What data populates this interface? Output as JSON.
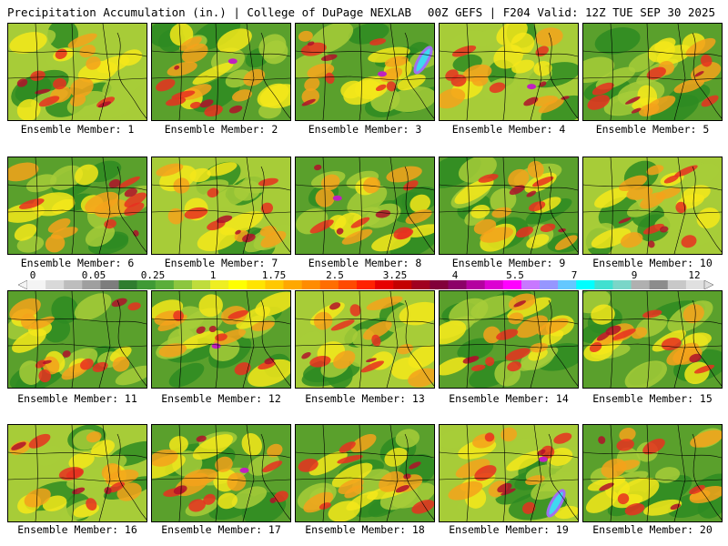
{
  "header": {
    "left_title": "Precipitation Accumulation (in.) | College of DuPage NEXLAB",
    "right_title": "00Z GEFS | F204 Valid: 12Z TUE SEP 30 2025"
  },
  "members": [
    {
      "label": "Ensemble Member: 1"
    },
    {
      "label": "Ensemble Member: 2"
    },
    {
      "label": "Ensemble Member: 3"
    },
    {
      "label": "Ensemble Member: 4"
    },
    {
      "label": "Ensemble Member: 5"
    },
    {
      "label": "Ensemble Member: 6"
    },
    {
      "label": "Ensemble Member: 7"
    },
    {
      "label": "Ensemble Member: 8"
    },
    {
      "label": "Ensemble Member: 9"
    },
    {
      "label": "Ensemble Member: 10"
    },
    {
      "label": "Ensemble Member: 11"
    },
    {
      "label": "Ensemble Member: 12"
    },
    {
      "label": "Ensemble Member: 13"
    },
    {
      "label": "Ensemble Member: 14"
    },
    {
      "label": "Ensemble Member: 15"
    },
    {
      "label": "Ensemble Member: 16"
    },
    {
      "label": "Ensemble Member: 17"
    },
    {
      "label": "Ensemble Member: 18"
    },
    {
      "label": "Ensemble Member: 19"
    },
    {
      "label": "Ensemble Member: 20"
    }
  ],
  "scale": {
    "tick_labels": [
      "0",
      "0.05",
      "0.25",
      "1",
      "1.75",
      "2.5",
      "3.25",
      "4",
      "5.5",
      "7",
      "9",
      "12"
    ],
    "colors": [
      "#f4f4f4",
      "#d9d9d9",
      "#bdbdbd",
      "#9f9f9f",
      "#7d7d7d",
      "#2f7d2f",
      "#3f9a35",
      "#5aae3a",
      "#8cc63f",
      "#bfdc3c",
      "#eeee22",
      "#ffff00",
      "#ffe400",
      "#ffc800",
      "#ffa800",
      "#ff8c00",
      "#ff6e00",
      "#ff4a00",
      "#ff2200",
      "#e60000",
      "#c40000",
      "#a00020",
      "#82003a",
      "#8c0068",
      "#b400a0",
      "#dc00d2",
      "#ff00ff",
      "#c878ff",
      "#9696ff",
      "#64c8ff",
      "#00ffff",
      "#40e0d0",
      "#7ad6c8",
      "#b0b0b0",
      "#8c8c8c",
      "#c8c8c8",
      "#e0e0e0"
    ]
  },
  "palette": {
    "dark_green": "#2e8b22",
    "green": "#5aa02c",
    "yellow_green": "#a7cc38",
    "yellow": "#f4e81a",
    "orange": "#f5a21b",
    "red": "#e83020",
    "dark_red": "#b0102a",
    "magenta": "#c020c0",
    "purple": "#a070f0",
    "cyan": "#40d8f0",
    "border": "#000000"
  }
}
